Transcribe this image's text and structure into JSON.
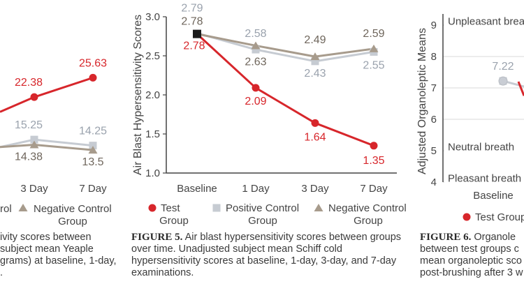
{
  "colors": {
    "test": "#d7262b",
    "positive": "#c6cbd2",
    "negative": "#a79b8c",
    "axis": "#444444",
    "grid": "#d8d8d8"
  },
  "chart_data": [
    {
      "type": "line",
      "categories": [
        "",
        "3 Day",
        "7 Day"
      ],
      "series": [
        {
          "key": "test",
          "values": [
            null,
            22.38,
            25.63
          ],
          "labels": [
            "",
            "22.38",
            "25.63"
          ]
        },
        {
          "key": "positive",
          "values": [
            null,
            15.25,
            14.25
          ],
          "labels": [
            "",
            "15.25",
            "14.25"
          ]
        },
        {
          "key": "negative",
          "values": [
            null,
            14.38,
            13.5
          ],
          "labels": [
            "",
            "14.38",
            "13.5"
          ]
        }
      ],
      "legend": [
        {
          "key": "test",
          "label": "rol"
        },
        {
          "key": "negative",
          "label": "Negative Control Group"
        }
      ],
      "caption": {
        "figure": "",
        "text": "ivity scores between subject mean Yeaple grams) at baseline, 1-day, ."
      }
    },
    {
      "type": "line",
      "title": "",
      "ylabel": "Air Blast Hypersensitivity Scores",
      "categories": [
        "Baseline",
        "1 Day",
        "3 Day",
        "7 Day"
      ],
      "ylim": [
        1.0,
        3.0
      ],
      "yticks": [
        "1.0",
        "1.5",
        "2.0",
        "2.5",
        "3.0"
      ],
      "series": [
        {
          "key": "test",
          "name": "Test Group",
          "values": [
            2.78,
            2.09,
            1.64,
            1.35
          ]
        },
        {
          "key": "positive",
          "name": "Positive Control Group",
          "values": [
            2.79,
            2.58,
            2.43,
            2.55
          ]
        },
        {
          "key": "negative",
          "name": "Negative Control Group",
          "values": [
            2.78,
            2.63,
            2.49,
            2.59
          ]
        }
      ],
      "point_labels": {
        "test": [
          "2.78",
          "2.09",
          "1.64",
          "1.35"
        ],
        "positive": [
          "2.79",
          "2.58",
          "2.43",
          "2.55"
        ],
        "negative": [
          "2.78",
          "2.63",
          "2.49",
          "2.59"
        ]
      },
      "legend": [
        {
          "key": "test",
          "label": "Test Group"
        },
        {
          "key": "positive",
          "label": "Positive Control Group"
        },
        {
          "key": "negative",
          "label": "Negative Control Group"
        }
      ],
      "caption": {
        "figure": "FIGURE 5.",
        "text": "Air blast hypersensitivity scores between groups over time. Unadjusted subject mean Schiff cold hypersensitivity scores at baseline, 1-day, 3-day, and 7-day examinations."
      }
    },
    {
      "type": "line",
      "ylabel": "Adjusted Organoleptic Means",
      "categories": [
        "Baseline"
      ],
      "ylim": [
        4,
        9
      ],
      "yticks": [
        "4",
        "5",
        "6",
        "7",
        "8",
        "9"
      ],
      "ref_labels": [
        {
          "y": 9,
          "text": "Unpleasant breath"
        },
        {
          "y": 5,
          "text": "Neutral breath"
        },
        {
          "y": 4,
          "text": "Pleasant breath"
        }
      ],
      "series": [
        {
          "key": "positive",
          "values": [
            7.22
          ],
          "labels": [
            "7.22"
          ]
        }
      ],
      "legend": [
        {
          "key": "test",
          "label": "Test Group"
        }
      ],
      "caption": {
        "figure": "FIGURE 6.",
        "text": "Organole between test groups c mean organoleptic sco post-brushing after 3 w"
      }
    }
  ]
}
